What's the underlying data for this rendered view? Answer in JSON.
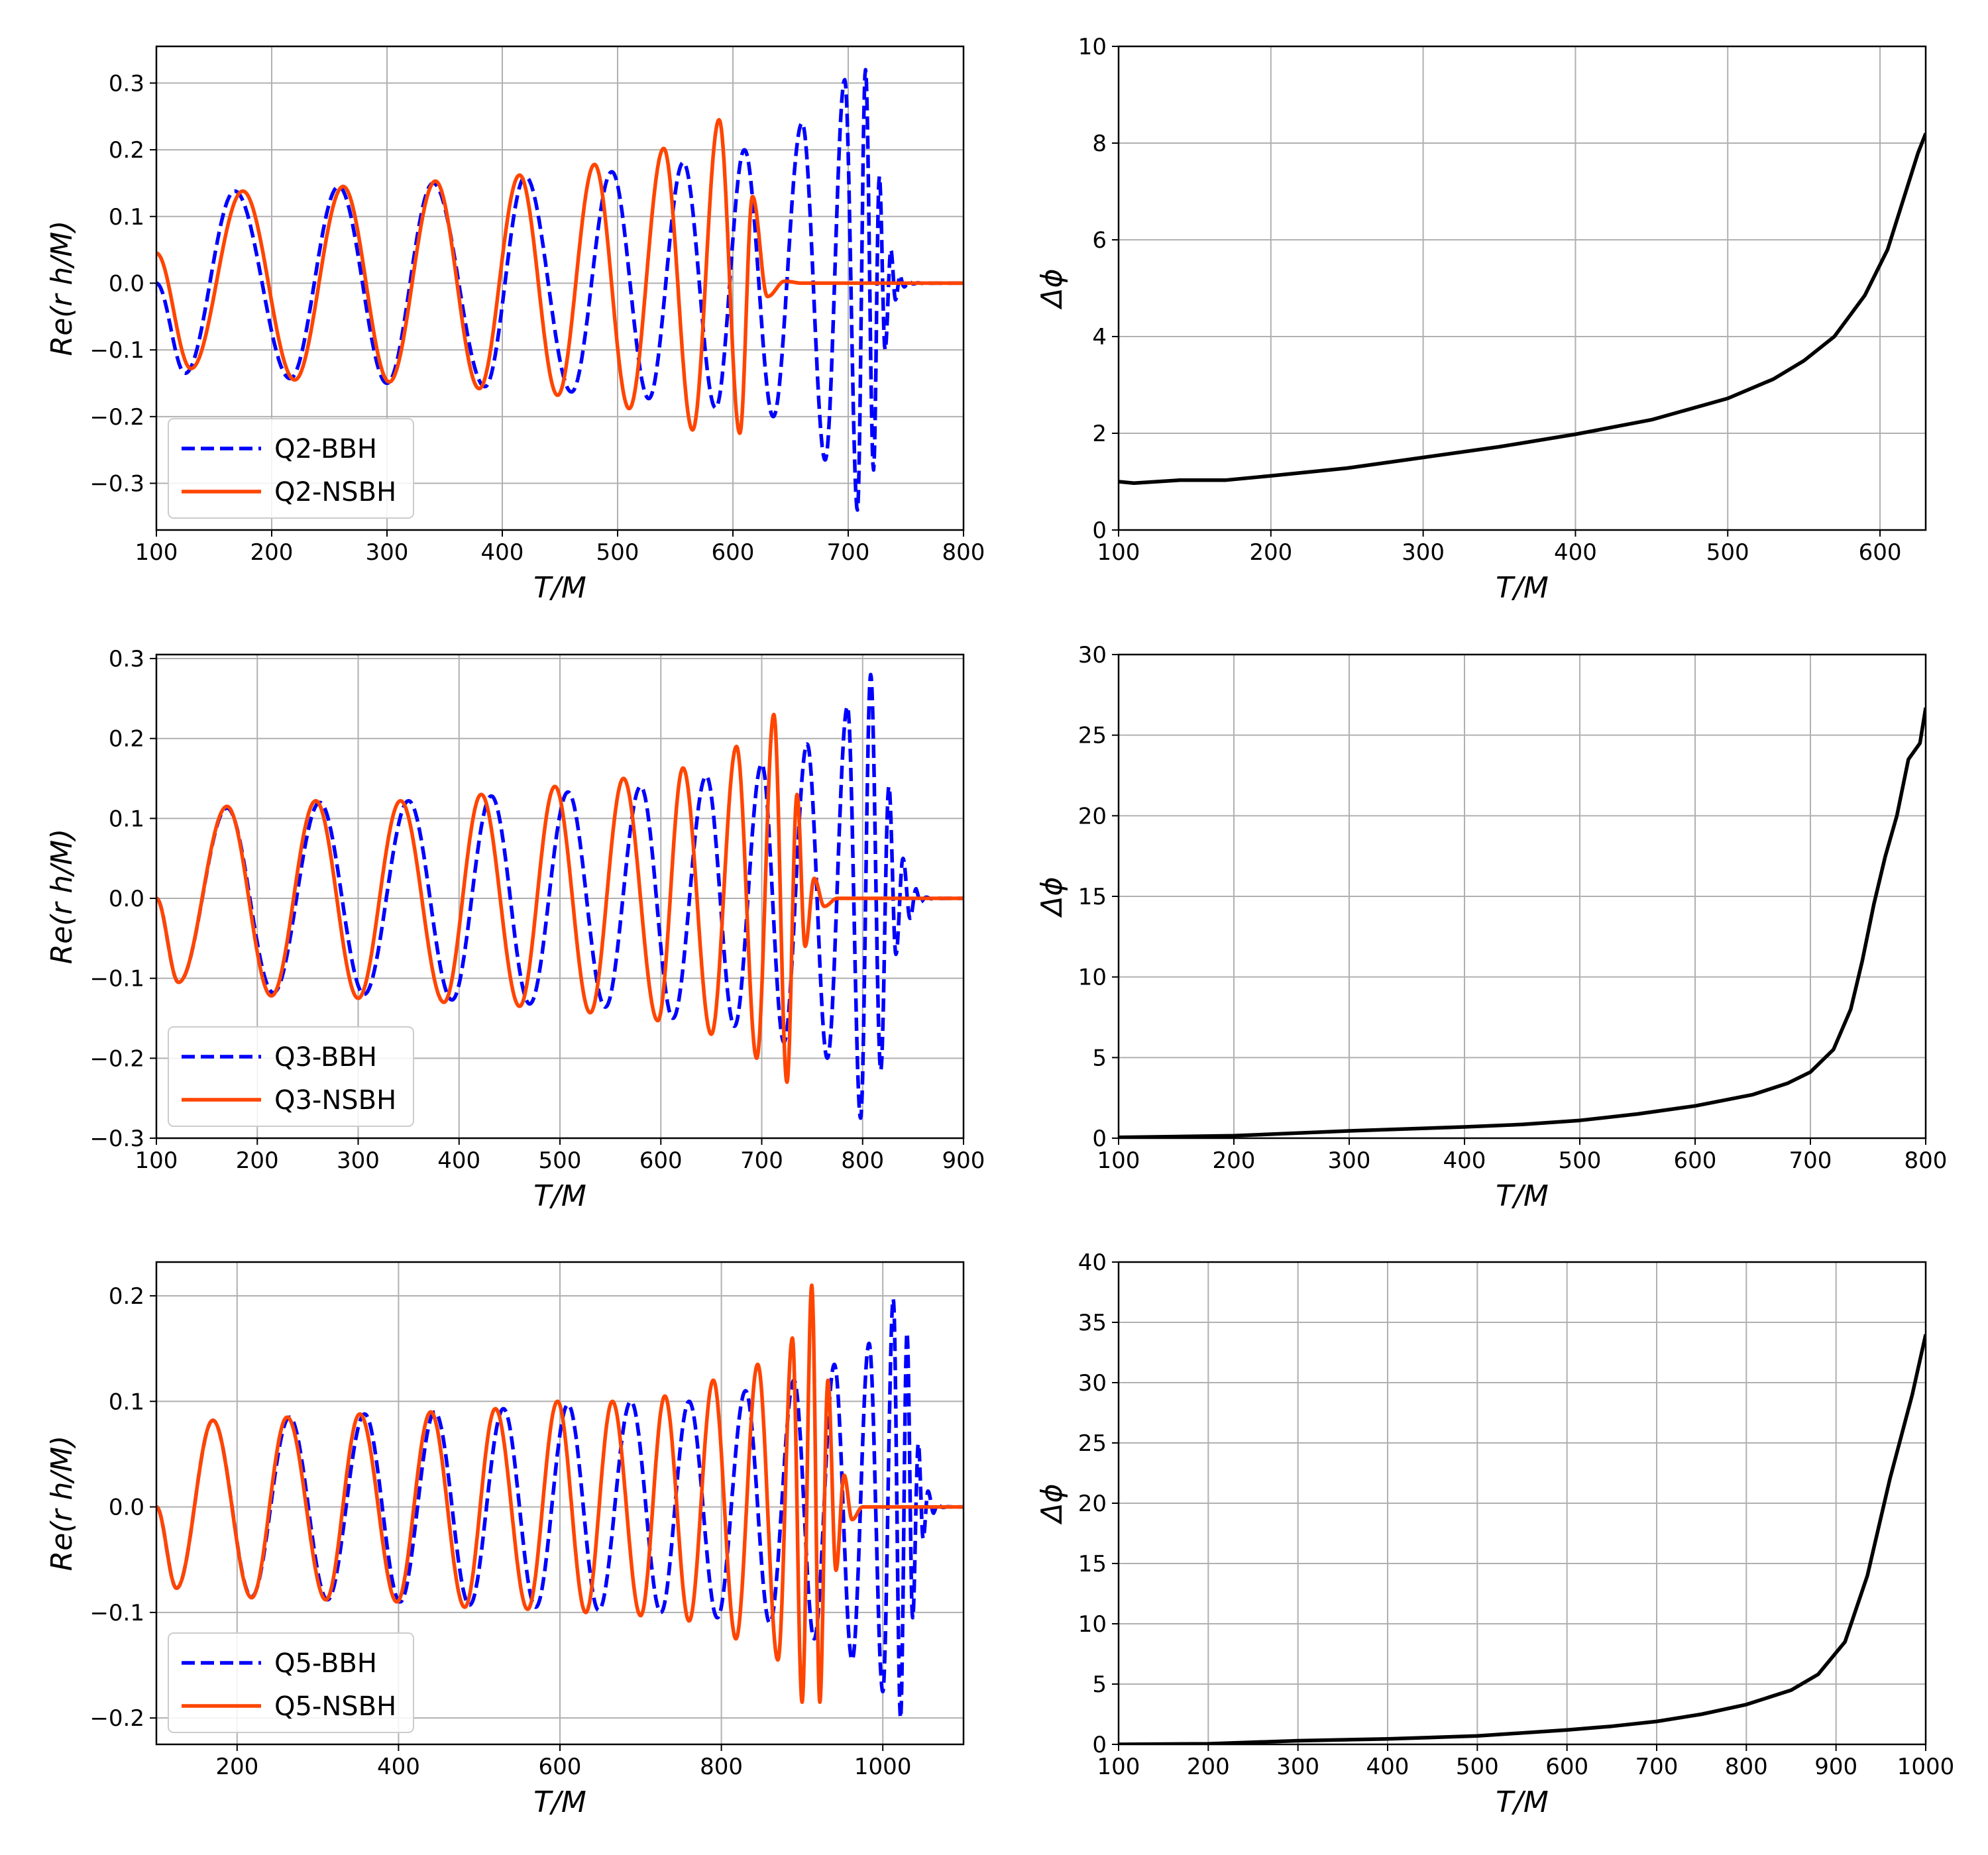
{
  "colors": {
    "bbh": "#0000ff",
    "nsbh": "#ff4500",
    "dphi": "#000000",
    "grid": "#b0b0b0"
  },
  "chart_data": [
    {
      "type": "line",
      "id": "q2-wave",
      "xlabel": "T/M",
      "ylabel": "Re(r h/M)",
      "xlim": [
        100,
        800
      ],
      "ylim": [
        -0.37,
        0.355
      ],
      "xticks": [
        100,
        200,
        300,
        400,
        500,
        600,
        700,
        800
      ],
      "yticks": [
        -0.3,
        -0.2,
        -0.1,
        0.0,
        0.1,
        0.2,
        0.3
      ],
      "grid": true,
      "legend_position": "lower-left",
      "series": [
        {
          "name": "Q2-BBH",
          "style": "dashed",
          "color": "#0000ff",
          "t_start": 100,
          "t_peak": 715,
          "t_end": 800,
          "extrema": [
            [
              125,
              -0.135
            ],
            [
              168,
              0.138
            ],
            [
              216,
              -0.143
            ],
            [
              258,
              0.145
            ],
            [
              300,
              -0.15
            ],
            [
              340,
              0.15
            ],
            [
              385,
              -0.155
            ],
            [
              420,
              0.16
            ],
            [
              460,
              -0.163
            ],
            [
              495,
              0.167
            ],
            [
              527,
              -0.173
            ],
            [
              557,
              0.181
            ],
            [
              585,
              -0.187
            ],
            [
              610,
              0.2
            ],
            [
              635,
              -0.2
            ],
            [
              660,
              0.24
            ],
            [
              680,
              -0.265
            ],
            [
              697,
              0.305
            ],
            [
              708,
              -0.34
            ],
            [
              715,
              0.32
            ],
            [
              722,
              -0.28
            ],
            [
              727,
              0.16
            ],
            [
              732,
              -0.1
            ],
            [
              737,
              0.05
            ],
            [
              741,
              -0.025
            ],
            [
              745,
              0.012
            ]
          ]
        },
        {
          "name": "Q2-NSBH",
          "style": "solid",
          "color": "#ff4500",
          "t_start": 100,
          "t_peak": 588,
          "t_end": 800,
          "start_value": 0.045,
          "extrema": [
            [
              130,
              -0.128
            ],
            [
              175,
              0.138
            ],
            [
              220,
              -0.145
            ],
            [
              262,
              0.145
            ],
            [
              302,
              -0.148
            ],
            [
              342,
              0.153
            ],
            [
              380,
              -0.158
            ],
            [
              415,
              0.162
            ],
            [
              448,
              -0.168
            ],
            [
              480,
              0.178
            ],
            [
              510,
              -0.188
            ],
            [
              540,
              0.202
            ],
            [
              565,
              -0.22
            ],
            [
              588,
              0.245
            ],
            [
              606,
              -0.225
            ],
            [
              617,
              0.13
            ],
            [
              630,
              -0.02
            ],
            [
              645,
              0.003
            ],
            [
              660,
              0.0
            ]
          ]
        }
      ]
    },
    {
      "type": "line",
      "id": "q2-dphi",
      "xlabel": "T/M",
      "ylabel": "Δϕ",
      "xlim": [
        100,
        630
      ],
      "ylim": [
        0,
        10
      ],
      "xticks": [
        100,
        200,
        300,
        400,
        500,
        600
      ],
      "yticks": [
        0,
        2,
        4,
        6,
        8,
        10
      ],
      "grid": true,
      "series": [
        {
          "name": "Δϕ",
          "color": "#000000",
          "points": [
            [
              100,
              1.0
            ],
            [
              110,
              0.97
            ],
            [
              140,
              1.03
            ],
            [
              170,
              1.03
            ],
            [
              200,
              1.12
            ],
            [
              250,
              1.28
            ],
            [
              300,
              1.5
            ],
            [
              350,
              1.72
            ],
            [
              400,
              1.98
            ],
            [
              450,
              2.28
            ],
            [
              500,
              2.72
            ],
            [
              530,
              3.12
            ],
            [
              550,
              3.5
            ],
            [
              570,
              4.0
            ],
            [
              590,
              4.85
            ],
            [
              605,
              5.8
            ],
            [
              615,
              6.8
            ],
            [
              625,
              7.8
            ],
            [
              630,
              8.2
            ]
          ]
        }
      ]
    },
    {
      "type": "line",
      "id": "q3-wave",
      "xlabel": "T/M",
      "ylabel": "Re(r h/M)",
      "xlim": [
        100,
        900
      ],
      "ylim": [
        -0.3,
        0.305
      ],
      "xticks": [
        100,
        200,
        300,
        400,
        500,
        600,
        700,
        800,
        900
      ],
      "yticks": [
        -0.3,
        -0.2,
        -0.1,
        0.0,
        0.1,
        0.2,
        0.3
      ],
      "grid": true,
      "legend_position": "lower-left",
      "series": [
        {
          "name": "Q3-BBH",
          "style": "dashed",
          "color": "#0000ff",
          "t_start": 100,
          "t_peak": 808,
          "t_end": 900,
          "extrema": [
            [
              122,
              -0.105
            ],
            [
              170,
              0.113
            ],
            [
              216,
              -0.118
            ],
            [
              262,
              0.12
            ],
            [
              306,
              -0.12
            ],
            [
              350,
              0.122
            ],
            [
              393,
              -0.127
            ],
            [
              432,
              0.128
            ],
            [
              470,
              -0.132
            ],
            [
              508,
              0.133
            ],
            [
              545,
              -0.136
            ],
            [
              580,
              0.14
            ],
            [
              612,
              -0.15
            ],
            [
              645,
              0.153
            ],
            [
              673,
              -0.16
            ],
            [
              700,
              0.168
            ],
            [
              722,
              -0.18
            ],
            [
              745,
              0.193
            ],
            [
              765,
              -0.2
            ],
            [
              785,
              0.24
            ],
            [
              798,
              -0.275
            ],
            [
              808,
              0.28
            ],
            [
              818,
              -0.215
            ],
            [
              826,
              0.14
            ],
            [
              833,
              -0.07
            ],
            [
              840,
              0.05
            ],
            [
              847,
              -0.025
            ],
            [
              853,
              0.012
            ]
          ]
        },
        {
          "name": "Q3-NSBH",
          "style": "solid",
          "color": "#ff4500",
          "t_start": 100,
          "t_peak": 712,
          "t_end": 900,
          "extrema": [
            [
              122,
              -0.105
            ],
            [
              170,
              0.115
            ],
            [
              214,
              -0.122
            ],
            [
              258,
              0.122
            ],
            [
              300,
              -0.125
            ],
            [
              342,
              0.122
            ],
            [
              385,
              -0.13
            ],
            [
              422,
              0.13
            ],
            [
              460,
              -0.135
            ],
            [
              495,
              0.14
            ],
            [
              530,
              -0.143
            ],
            [
              563,
              0.15
            ],
            [
              597,
              -0.153
            ],
            [
              622,
              0.163
            ],
            [
              650,
              -0.17
            ],
            [
              675,
              0.19
            ],
            [
              695,
              -0.2
            ],
            [
              712,
              0.23
            ],
            [
              725,
              -0.23
            ],
            [
              735,
              0.13
            ],
            [
              743,
              -0.06
            ],
            [
              752,
              0.025
            ],
            [
              762,
              -0.01
            ],
            [
              775,
              0.0
            ]
          ]
        }
      ]
    },
    {
      "type": "line",
      "id": "q3-dphi",
      "xlabel": "T/M",
      "ylabel": "Δϕ",
      "xlim": [
        100,
        800
      ],
      "ylim": [
        0,
        30
      ],
      "xticks": [
        100,
        200,
        300,
        400,
        500,
        600,
        700,
        800
      ],
      "yticks": [
        0,
        5,
        10,
        15,
        20,
        25,
        30
      ],
      "grid": true,
      "series": [
        {
          "name": "Δϕ",
          "color": "#000000",
          "points": [
            [
              100,
              0.05
            ],
            [
              200,
              0.15
            ],
            [
              300,
              0.45
            ],
            [
              400,
              0.7
            ],
            [
              450,
              0.85
            ],
            [
              500,
              1.1
            ],
            [
              550,
              1.5
            ],
            [
              600,
              2.0
            ],
            [
              650,
              2.7
            ],
            [
              680,
              3.4
            ],
            [
              700,
              4.1
            ],
            [
              720,
              5.5
            ],
            [
              735,
              8.0
            ],
            [
              745,
              11.0
            ],
            [
              755,
              14.5
            ],
            [
              765,
              17.5
            ],
            [
              775,
              20.0
            ],
            [
              785,
              23.5
            ],
            [
              795,
              24.5
            ],
            [
              800,
              26.7
            ]
          ]
        }
      ]
    },
    {
      "type": "line",
      "id": "q5-wave",
      "xlabel": "T/M",
      "ylabel": "Re(r h/M)",
      "xlim": [
        100,
        1100
      ],
      "ylim": [
        -0.225,
        0.232
      ],
      "xticks": [
        200,
        400,
        600,
        800,
        1000
      ],
      "yticks": [
        -0.2,
        -0.1,
        0.0,
        0.1,
        0.2
      ],
      "grid": true,
      "legend_position": "lower-left",
      "series": [
        {
          "name": "Q5-BBH",
          "style": "dashed",
          "color": "#0000ff",
          "t_start": 100,
          "t_peak": 1013,
          "t_end": 1100,
          "extrema": [
            [
              125,
              -0.077
            ],
            [
              170,
              0.082
            ],
            [
              218,
              -0.085
            ],
            [
              265,
              0.085
            ],
            [
              312,
              -0.088
            ],
            [
              358,
              0.088
            ],
            [
              402,
              -0.09
            ],
            [
              445,
              0.09
            ],
            [
              488,
              -0.093
            ],
            [
              530,
              0.093
            ],
            [
              570,
              -0.095
            ],
            [
              610,
              0.097
            ],
            [
              648,
              -0.098
            ],
            [
              688,
              0.1
            ],
            [
              725,
              -0.1
            ],
            [
              760,
              0.1
            ],
            [
              795,
              -0.105
            ],
            [
              830,
              0.11
            ],
            [
              860,
              -0.11
            ],
            [
              890,
              0.12
            ],
            [
              915,
              -0.125
            ],
            [
              940,
              0.135
            ],
            [
              962,
              -0.145
            ],
            [
              983,
              0.155
            ],
            [
              1000,
              -0.175
            ],
            [
              1013,
              0.197
            ],
            [
              1022,
              -0.2
            ],
            [
              1030,
              0.165
            ],
            [
              1037,
              -0.105
            ],
            [
              1044,
              0.06
            ],
            [
              1050,
              -0.03
            ],
            [
              1056,
              0.015
            ],
            [
              1063,
              -0.006
            ]
          ]
        },
        {
          "name": "Q5-NSBH",
          "style": "solid",
          "color": "#ff4500",
          "t_start": 100,
          "t_peak": 912,
          "t_end": 1100,
          "extrema": [
            [
              125,
              -0.077
            ],
            [
              170,
              0.082
            ],
            [
              218,
              -0.086
            ],
            [
              262,
              0.085
            ],
            [
              310,
              -0.088
            ],
            [
              352,
              0.088
            ],
            [
              398,
              -0.09
            ],
            [
              440,
              0.09
            ],
            [
              482,
              -0.095
            ],
            [
              520,
              0.093
            ],
            [
              560,
              -0.097
            ],
            [
              597,
              0.1
            ],
            [
              632,
              -0.1
            ],
            [
              665,
              0.1
            ],
            [
              700,
              -0.103
            ],
            [
              730,
              0.105
            ],
            [
              760,
              -0.108
            ],
            [
              790,
              0.12
            ],
            [
              818,
              -0.125
            ],
            [
              845,
              0.135
            ],
            [
              870,
              -0.145
            ],
            [
              888,
              0.16
            ],
            [
              900,
              -0.185
            ],
            [
              912,
              0.21
            ],
            [
              922,
              -0.185
            ],
            [
              932,
              0.12
            ],
            [
              942,
              -0.06
            ],
            [
              952,
              0.03
            ],
            [
              962,
              -0.012
            ],
            [
              975,
              0.0
            ]
          ]
        }
      ]
    },
    {
      "type": "line",
      "id": "q5-dphi",
      "xlabel": "T/M",
      "ylabel": "Δϕ",
      "xlim": [
        100,
        1000
      ],
      "ylim": [
        0,
        40
      ],
      "xticks": [
        100,
        200,
        300,
        400,
        500,
        600,
        700,
        800,
        900,
        1000
      ],
      "yticks": [
        0,
        5,
        10,
        15,
        20,
        25,
        30,
        35,
        40
      ],
      "grid": true,
      "series": [
        {
          "name": "Δϕ",
          "color": "#000000",
          "points": [
            [
              100,
              0.0
            ],
            [
              200,
              0.05
            ],
            [
              300,
              0.3
            ],
            [
              400,
              0.45
            ],
            [
              500,
              0.7
            ],
            [
              600,
              1.2
            ],
            [
              650,
              1.5
            ],
            [
              700,
              1.9
            ],
            [
              750,
              2.5
            ],
            [
              800,
              3.3
            ],
            [
              850,
              4.5
            ],
            [
              880,
              5.8
            ],
            [
              910,
              8.5
            ],
            [
              935,
              14.0
            ],
            [
              960,
              22.0
            ],
            [
              985,
              29.0
            ],
            [
              1000,
              34.0
            ]
          ]
        }
      ]
    }
  ]
}
